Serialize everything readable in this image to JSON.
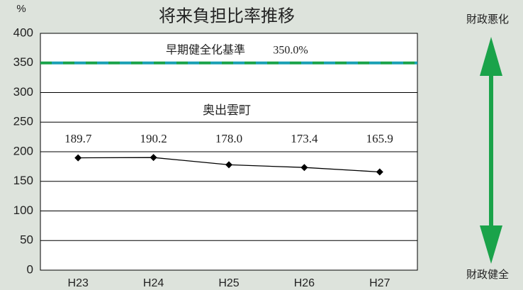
{
  "chart_data": {
    "type": "line",
    "title": "将来負担比率推移",
    "y_unit": "%",
    "categories": [
      "H23",
      "H24",
      "H25",
      "H26",
      "H27"
    ],
    "series": [
      {
        "name": "奥出雲町",
        "color": "#000000",
        "values": [
          189.7,
          190.2,
          178.0,
          173.4,
          165.9
        ],
        "value_labels": [
          "189.7",
          "190.2",
          "178.0",
          "173.4",
          "165.9"
        ]
      }
    ],
    "threshold": {
      "name": "早期健全化基準",
      "value": 350,
      "label": "350.0%",
      "colors": [
        "#1aa34a",
        "#1aa0b4"
      ]
    },
    "annotations": {
      "top": "財政悪化",
      "bottom": "財政健全"
    },
    "ylim": [
      0,
      400
    ],
    "yticks": [
      0,
      50,
      100,
      150,
      200,
      250,
      300,
      350,
      400
    ],
    "grid": true
  }
}
